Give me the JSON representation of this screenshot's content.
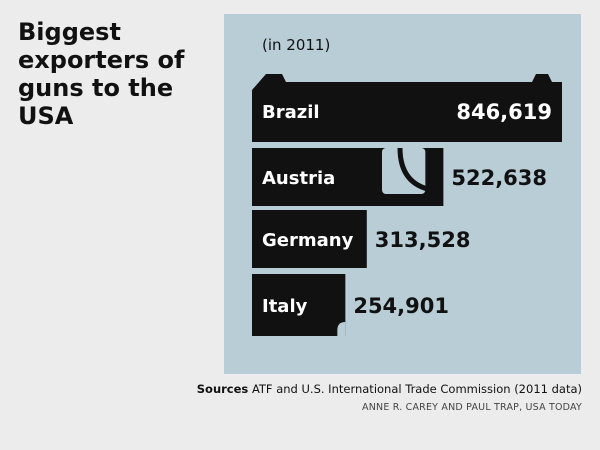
{
  "chart_data": {
    "type": "bar",
    "title": "Biggest exporters of guns to the USA",
    "subtitle": "(in 2011)",
    "categories": [
      "Brazil",
      "Austria",
      "Germany",
      "Italy"
    ],
    "values": [
      846619,
      522638,
      313528,
      254901
    ],
    "value_labels": [
      "846,619",
      "522,638",
      "313,528",
      "254,901"
    ],
    "bar_color": "#111111",
    "background_color": "#b9cdd6"
  },
  "source": {
    "label": "Sources",
    "text": "ATF and U.S. International Trade Commission (2011 data)"
  },
  "credit": "ANNE R. CAREY AND PAUL TRAP, USA TODAY"
}
